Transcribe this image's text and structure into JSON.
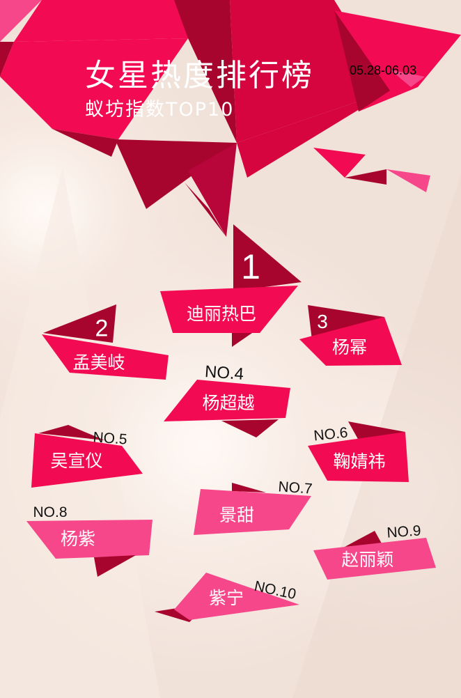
{
  "header": {
    "title": "女星热度排行榜",
    "subtitle": "蚁坊指数TOP10",
    "date_range": "05.28-06.03"
  },
  "colors": {
    "primary": "#f20a52",
    "dark": "#a8052e",
    "light": "#f5478a"
  },
  "ranking": [
    {
      "rank": "1",
      "name": "迪丽热巴"
    },
    {
      "rank": "2",
      "name": "孟美岐"
    },
    {
      "rank": "3",
      "name": "杨幂"
    },
    {
      "rank": "NO.4",
      "name": "杨超越"
    },
    {
      "rank": "NO.5",
      "name": "吴宣仪"
    },
    {
      "rank": "NO.6",
      "name": "鞠婧祎"
    },
    {
      "rank": "NO.7",
      "name": "景甜"
    },
    {
      "rank": "NO.8",
      "name": "杨紫"
    },
    {
      "rank": "NO.9",
      "name": "赵丽颖"
    },
    {
      "rank": "NO.10",
      "name": "紫宁"
    }
  ]
}
